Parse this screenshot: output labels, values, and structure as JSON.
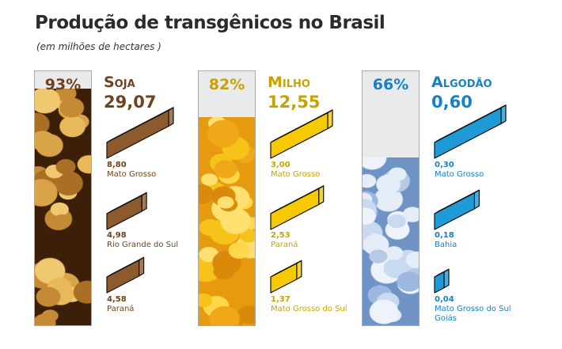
{
  "title": "Produção de transgênicos no Brasil",
  "subtitle": "(em milhões de hectares )",
  "chart_data": {
    "type": "bar",
    "title": "Produção de transgênicos no Brasil",
    "unit": "(em milhões de hectares )",
    "crops": [
      {
        "name": "Soja",
        "total": "29,07",
        "total_value": 29.07,
        "percent": "93%",
        "percent_value": 93,
        "color": "#6e431d",
        "bar_color": "#8c5a2c",
        "states": [
          {
            "value": "8,80",
            "num": 8.8,
            "label": "Mato Grosso"
          },
          {
            "value": "4,98",
            "num": 4.98,
            "label": "Rio Grande do Sul"
          },
          {
            "value": "4,58",
            "num": 4.58,
            "label": "Paraná"
          }
        ]
      },
      {
        "name": "Milho",
        "total": "12,55",
        "total_value": 12.55,
        "percent": "82%",
        "percent_value": 82,
        "color": "#c9a200",
        "bar_color": "#f6c900",
        "states": [
          {
            "value": "3,00",
            "num": 3.0,
            "label": "Mato Grosso"
          },
          {
            "value": "2,53",
            "num": 2.53,
            "label": "Paraná"
          },
          {
            "value": "1,37",
            "num": 1.37,
            "label": "Mato Grosso do Sul"
          }
        ]
      },
      {
        "name": "Algodão",
        "total": "0,60",
        "total_value": 0.6,
        "percent": "66%",
        "percent_value": 66,
        "color": "#1682c4",
        "bar_color": "#1e9ad6",
        "states": [
          {
            "value": "0,30",
            "num": 0.3,
            "label": "Mato Grosso"
          },
          {
            "value": "0,18",
            "num": 0.18,
            "label": "Bahia"
          },
          {
            "value": "0,04",
            "num": 0.04,
            "label": "Mato Grosso do Sul\nGoiás"
          }
        ]
      }
    ]
  }
}
